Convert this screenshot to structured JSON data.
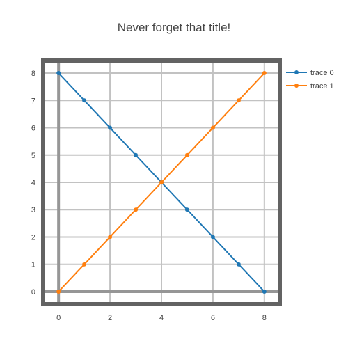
{
  "chart_data": {
    "type": "line",
    "title": "Never forget that title!",
    "xlabel": "",
    "ylabel": "",
    "xlim": [
      -0.6,
      8.6
    ],
    "ylim": [
      -0.46,
      8.46
    ],
    "x_ticks": [
      0,
      2,
      4,
      6,
      8
    ],
    "y_ticks": [
      0,
      1,
      2,
      3,
      4,
      5,
      6,
      7,
      8
    ],
    "grid": true,
    "legend_position": "top-right outside",
    "series": [
      {
        "name": "trace 0",
        "color": "#1f77b4",
        "x": [
          0,
          1,
          2,
          3,
          4,
          5,
          6,
          7,
          8
        ],
        "y": [
          8,
          7,
          6,
          5,
          4,
          3,
          2,
          1,
          0
        ]
      },
      {
        "name": "trace 1",
        "color": "#ff7f0e",
        "x": [
          0,
          1,
          2,
          3,
          4,
          5,
          6,
          7,
          8
        ],
        "y": [
          0,
          1,
          2,
          3,
          4,
          5,
          6,
          7,
          8
        ]
      }
    ]
  },
  "colors": {
    "frame": "#636363",
    "grid": "#c2c2c2",
    "zeroline": "#969696",
    "tick_text": "#444444",
    "title_text": "#444444",
    "background": "#ffffff"
  }
}
